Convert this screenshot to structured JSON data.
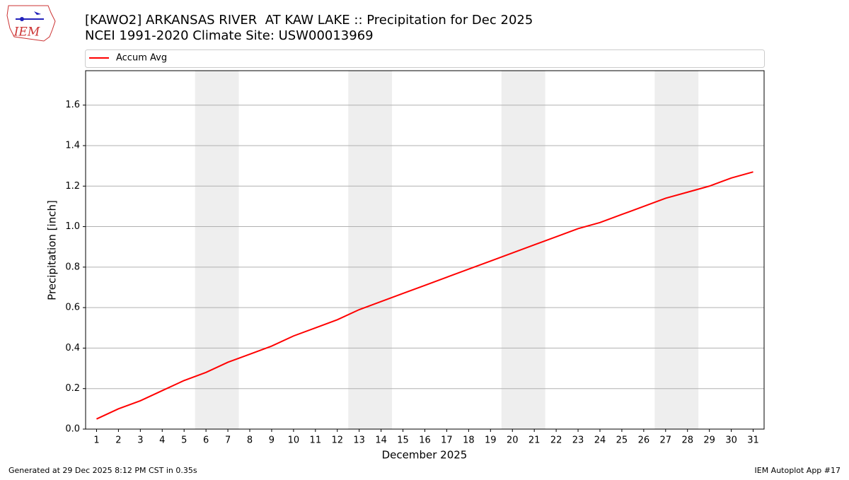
{
  "chart_data": {
    "type": "line",
    "title": "[KAWO2] ARKANSAS RIVER  AT KAW LAKE :: Precipitation for Dec 2025",
    "subtitle": "NCEI 1991-2020 Climate Site: USW00013969",
    "logo_text": "IEM",
    "x_label": "December 2025",
    "y_label": "Precipitation [inch]",
    "x": [
      1,
      2,
      3,
      4,
      5,
      6,
      7,
      8,
      9,
      10,
      11,
      12,
      13,
      14,
      15,
      16,
      17,
      18,
      19,
      20,
      21,
      22,
      23,
      24,
      25,
      26,
      27,
      28,
      29,
      30,
      31
    ],
    "series": [
      {
        "name": "Accum Avg",
        "color": "#ff0000",
        "values": [
          0.05,
          0.1,
          0.14,
          0.19,
          0.24,
          0.28,
          0.33,
          0.37,
          0.41,
          0.46,
          0.5,
          0.54,
          0.59,
          0.63,
          0.67,
          0.71,
          0.75,
          0.79,
          0.83,
          0.87,
          0.91,
          0.95,
          0.99,
          1.02,
          1.06,
          1.1,
          1.14,
          1.17,
          1.2,
          1.24,
          1.27
        ]
      }
    ],
    "shaded_spans": [
      [
        5.5,
        7.5
      ],
      [
        12.5,
        14.5
      ],
      [
        19.5,
        21.5
      ],
      [
        26.5,
        28.5
      ]
    ],
    "shade_color": "#eeeeee",
    "xlim": [
      0.5,
      31.5
    ],
    "xticks": [
      1,
      2,
      3,
      4,
      5,
      6,
      7,
      8,
      9,
      10,
      11,
      12,
      13,
      14,
      15,
      16,
      17,
      18,
      19,
      20,
      21,
      22,
      23,
      24,
      25,
      26,
      27,
      28,
      29,
      30,
      31
    ],
    "ylim": [
      0,
      1.77
    ],
    "yticks": [
      {
        "value": 0,
        "label": "0.0"
      },
      0.2,
      0.4,
      0.6,
      0.8,
      {
        "value": 1,
        "label": "1.0"
      },
      1.2,
      1.4,
      1.6
    ],
    "grid": true,
    "legend": "top",
    "footer_left": "Generated at 29 Dec 2025 8:12 PM CST in 0.35s",
    "footer_right": "IEM Autoplot App #17"
  }
}
